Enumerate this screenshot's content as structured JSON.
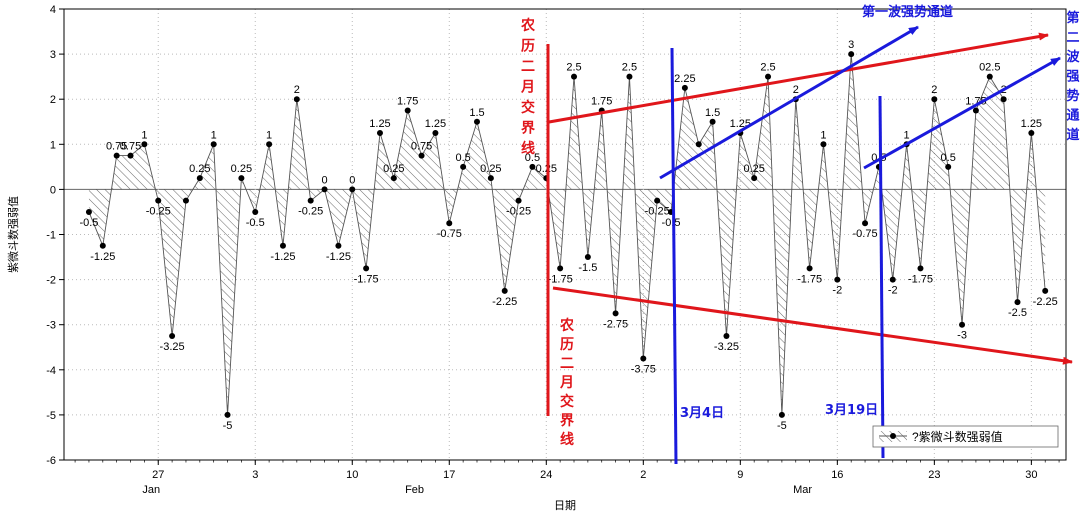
{
  "chart_data": {
    "type": "area",
    "xlabel": "日期",
    "ylabel": "紫微斗数强弱值",
    "ylim": [
      -6,
      4
    ],
    "y_ticks": [
      -6,
      -5,
      -4,
      -3,
      -2,
      -1,
      0,
      1,
      2,
      3,
      4
    ],
    "x_ticks": [
      {
        "day": 27,
        "label": "27"
      },
      {
        "day": 34,
        "label": "3"
      },
      {
        "day": 41,
        "label": "10"
      },
      {
        "day": 48,
        "label": "17"
      },
      {
        "day": 55,
        "label": "24"
      },
      {
        "day": 62,
        "label": "2"
      },
      {
        "day": 69,
        "label": "9"
      },
      {
        "day": 76,
        "label": "16"
      },
      {
        "day": 83,
        "label": "23"
      },
      {
        "day": 90,
        "label": "30"
      }
    ],
    "month_labels": [
      {
        "day": 27,
        "label": "Jan"
      },
      {
        "day": 46,
        "label": "Feb"
      },
      {
        "day": 74,
        "label": "Mar"
      }
    ],
    "grid": true,
    "legend": {
      "position": "bottom-right",
      "label": "?紫微斗数强弱值"
    },
    "series": [
      {
        "name": "?紫微斗数强弱值",
        "points": [
          [
            22,
            -0.5,
            "-0.5"
          ],
          [
            23,
            -1.25,
            "-1.25"
          ],
          [
            24,
            0.75,
            "0.75"
          ],
          [
            25,
            0.75,
            "0.75"
          ],
          [
            26,
            1,
            "1"
          ],
          [
            27,
            -0.25,
            "-0.25"
          ],
          [
            28,
            -3.25,
            "-3.25"
          ],
          [
            29,
            -0.25,
            ""
          ],
          [
            30,
            0.25,
            "0.25"
          ],
          [
            31,
            1,
            "1"
          ],
          [
            32,
            -5,
            "-5"
          ],
          [
            33,
            0.25,
            "0.25"
          ],
          [
            34,
            -0.5,
            "-0.5"
          ],
          [
            35,
            1,
            "1"
          ],
          [
            36,
            -1.25,
            "-1.25"
          ],
          [
            37,
            2,
            "2"
          ],
          [
            38,
            -0.25,
            "-0.25"
          ],
          [
            39,
            0,
            "0"
          ],
          [
            40,
            -1.25,
            "-1.25"
          ],
          [
            41,
            0,
            "0"
          ],
          [
            42,
            -1.75,
            "-1.75"
          ],
          [
            43,
            1.25,
            "1.25"
          ],
          [
            44,
            0.25,
            "0.25"
          ],
          [
            45,
            1.75,
            "1.75"
          ],
          [
            46,
            0.75,
            "0.75"
          ],
          [
            47,
            1.25,
            "1.25"
          ],
          [
            48,
            -0.75,
            "-0.75"
          ],
          [
            49,
            0.5,
            "0.5"
          ],
          [
            50,
            1.5,
            "1.5"
          ],
          [
            51,
            0.25,
            "0.25"
          ],
          [
            52,
            -2.25,
            "-2.25"
          ],
          [
            53,
            -0.25,
            "-0.25"
          ],
          [
            54,
            0.5,
            "0.5"
          ],
          [
            55,
            0.25,
            "0.25"
          ],
          [
            56,
            -1.75,
            "-1.75"
          ],
          [
            57,
            2.5,
            "2.5"
          ],
          [
            58,
            -1.5,
            "-1.5"
          ],
          [
            59,
            1.75,
            "1.75"
          ],
          [
            60,
            -2.75,
            "-2.75"
          ],
          [
            61,
            2.5,
            "2.5"
          ],
          [
            62,
            -3.75,
            "-3.75"
          ],
          [
            63,
            -0.25,
            "-0.25"
          ],
          [
            64,
            -0.5,
            "-0.5"
          ],
          [
            65,
            2.25,
            "2.25"
          ],
          [
            66,
            1,
            ""
          ],
          [
            67,
            1.5,
            "1.5"
          ],
          [
            68,
            -3.25,
            "-3.25"
          ],
          [
            69,
            1.25,
            "1.25"
          ],
          [
            70,
            0.25,
            "0.25"
          ],
          [
            71,
            2.5,
            "2.5"
          ],
          [
            72,
            -5,
            "-5"
          ],
          [
            73,
            2,
            "2"
          ],
          [
            74,
            -1.75,
            "-1.75"
          ],
          [
            75,
            1,
            "1"
          ],
          [
            76,
            -2,
            "-2"
          ],
          [
            77,
            3,
            "3"
          ],
          [
            78,
            -0.75,
            "-0.75"
          ],
          [
            79,
            0.5,
            "0.5"
          ],
          [
            80,
            -2,
            "-2"
          ],
          [
            81,
            1,
            "1"
          ],
          [
            82,
            -1.75,
            "-1.75"
          ],
          [
            83,
            2,
            "2"
          ],
          [
            84,
            0.5,
            "0.5"
          ],
          [
            85,
            -3,
            "-3"
          ],
          [
            86,
            1.75,
            "1.75"
          ],
          [
            87,
            2.5,
            "02.5"
          ],
          [
            88,
            2,
            "2"
          ],
          [
            89,
            -2.5,
            "-2.5"
          ],
          [
            90,
            1.25,
            "1.25"
          ],
          [
            91,
            -2.25,
            "-2.25"
          ]
        ]
      }
    ],
    "annotations": [
      {
        "name": "lunar-boundary-label-top",
        "text": "农历二月交界线",
        "color": "#e0161b",
        "vertical": true
      },
      {
        "name": "lunar-boundary-label-bottom",
        "text": "农历二月交界线",
        "color": "#e0161b",
        "vertical": true
      },
      {
        "name": "first-wave-label",
        "text": "第一波强势通道",
        "color": "#1a1adc",
        "vertical": false
      },
      {
        "name": "second-wave-label",
        "text": "第二波强势通道",
        "color": "#1a1adc",
        "vertical": true
      },
      {
        "name": "mar4-label",
        "text": "3月4日",
        "color": "#1a1adc",
        "vertical": false
      },
      {
        "name": "mar19-label",
        "text": "3月19日",
        "color": "#1a1adc",
        "vertical": false
      }
    ]
  }
}
